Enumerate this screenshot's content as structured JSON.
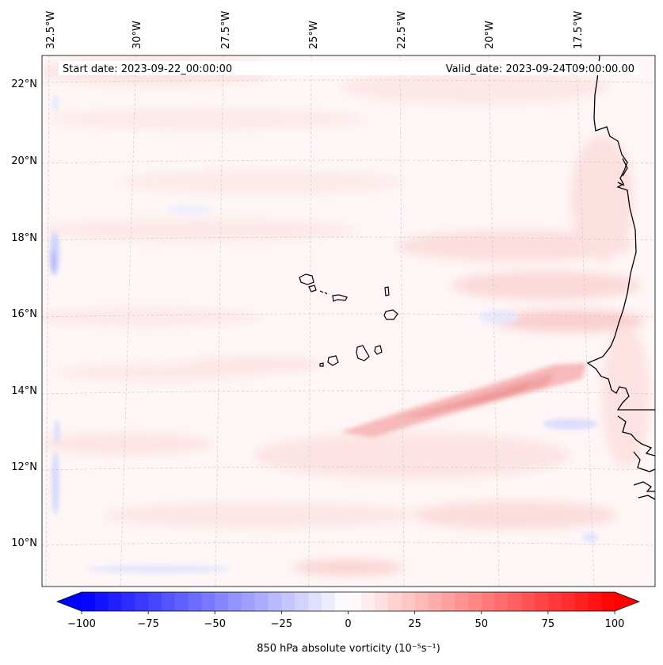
{
  "map": {
    "start_date": "Start date: 2023-09-22_00:00:00",
    "valid_date": "Valid_date: 2023-09-24T09:00:00.00",
    "lon_labels": [
      "32.5°W",
      "30°W",
      "27.5°W",
      "25°W",
      "22.5°W",
      "20°W",
      "17.5°W"
    ],
    "lat_labels": [
      "22°N",
      "20°N",
      "18°N",
      "16°N",
      "14°N",
      "12°N",
      "10°N"
    ],
    "field": "850 hPa absolute vorticity",
    "units": "10⁻⁵s⁻¹"
  },
  "colorbar": {
    "ticks": [
      "−100",
      "−75",
      "−50",
      "−25",
      "0",
      "25",
      "50",
      "75",
      "100"
    ],
    "vmin": -100,
    "vmax": 100,
    "step": 5,
    "label": "850 hPa absolute vorticity (10⁻⁵s⁻¹)"
  },
  "colors": {
    "negative": "#0000ff",
    "neutral": "#ffffff",
    "positive": "#ff0000",
    "coastline": "#000000",
    "grid": "#c8c8c8"
  }
}
